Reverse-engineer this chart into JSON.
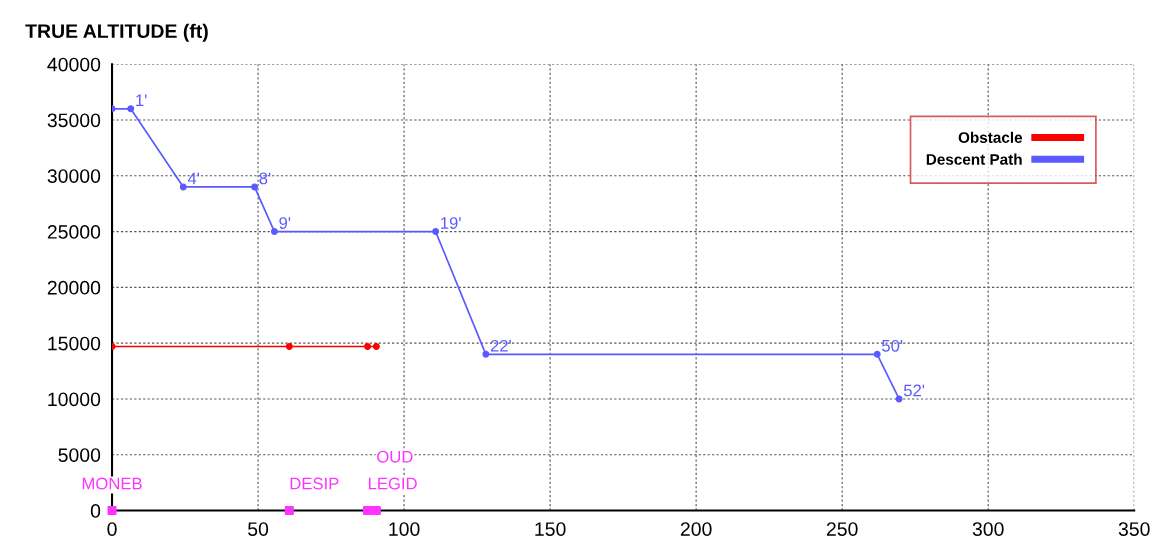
{
  "chart_data": {
    "type": "line",
    "ylabel": "TRUE ALTITUDE (ft)",
    "series": [
      {
        "name": "Obstacle",
        "color": "#ff0000",
        "x": [
          0,
          60.7,
          87.5,
          90.5
        ],
        "values": [
          14700,
          14700,
          14700,
          14700
        ]
      },
      {
        "type": "scatter",
        "marker": "square",
        "color": "#ff33ff",
        "x": [
          0,
          60.7,
          87.5,
          90.5
        ],
        "values": [
          0,
          0,
          0,
          0
        ],
        "value_labels": [
          "MONEB",
          "DESIP",
          "LEGID",
          "OUD"
        ]
      },
      {
        "name": "Descent Path",
        "color": "#5a5aff",
        "x": [
          0,
          6.4,
          24.4,
          48.8,
          55.6,
          110.8,
          128,
          262,
          269.5
        ],
        "values": [
          36000,
          36000,
          29000,
          29000,
          25000,
          25000,
          14000,
          14000,
          10000
        ]
      }
    ],
    "annotations": [
      {
        "text": "1'",
        "x": 6.4,
        "y": 36000
      },
      {
        "text": "4'",
        "x": 24.4,
        "y": 29000
      },
      {
        "text": "8'",
        "x": 48.8,
        "y": 29000
      },
      {
        "text": "9'",
        "x": 55.6,
        "y": 25000
      },
      {
        "text": "19'",
        "x": 110.8,
        "y": 25000
      },
      {
        "text": "22'",
        "x": 128,
        "y": 14000
      },
      {
        "text": "50'",
        "x": 262,
        "y": 14000
      },
      {
        "text": "52'",
        "x": 269.5,
        "y": 10000
      }
    ],
    "xlim": [
      0,
      350
    ],
    "xticks": [
      0,
      50,
      100,
      150,
      200,
      250,
      300,
      350
    ],
    "ylim": [
      0,
      40000
    ],
    "yticks": [
      0,
      5000,
      10000,
      15000,
      20000,
      25000,
      30000,
      35000,
      40000
    ],
    "grid": true,
    "legend": "top right",
    "marker": "circle",
    "line_style": "solid"
  }
}
